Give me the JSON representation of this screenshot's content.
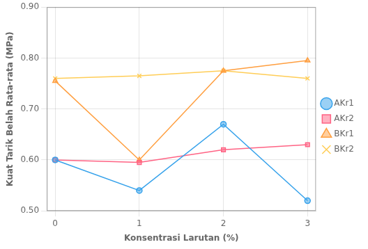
{
  "chart_data": {
    "type": "line",
    "x": [
      0,
      1,
      2,
      3
    ],
    "series": [
      {
        "name": "AKr1",
        "marker": "circle",
        "values": [
          0.6,
          0.54,
          0.67,
          0.52
        ]
      },
      {
        "name": "AKr2",
        "marker": "square",
        "values": [
          0.6,
          0.595,
          0.62,
          0.63
        ]
      },
      {
        "name": "BKr1",
        "marker": "triangle",
        "values": [
          0.755,
          0.6,
          0.775,
          0.795
        ]
      },
      {
        "name": "BKr2",
        "marker": "x",
        "values": [
          0.76,
          0.765,
          0.775,
          0.76
        ]
      }
    ],
    "xlabel": "Konsentrasi Larutan (%)",
    "ylabel": "Kuat Tarik Belah Rata-rata (MPa)",
    "xlim": [
      -0.1,
      3.1
    ],
    "xticks": [
      0,
      1,
      2,
      3
    ],
    "ylim": [
      0.5,
      0.9
    ],
    "yticks": [
      {
        "value": 0.5,
        "label": "0.50"
      },
      {
        "value": 0.6,
        "label": "0.60"
      },
      {
        "value": 0.7,
        "label": "0.70"
      },
      {
        "value": 0.8,
        "label": "0.80"
      },
      {
        "value": 0.9,
        "label": "0.90"
      }
    ],
    "grid": true,
    "legend": "right"
  }
}
